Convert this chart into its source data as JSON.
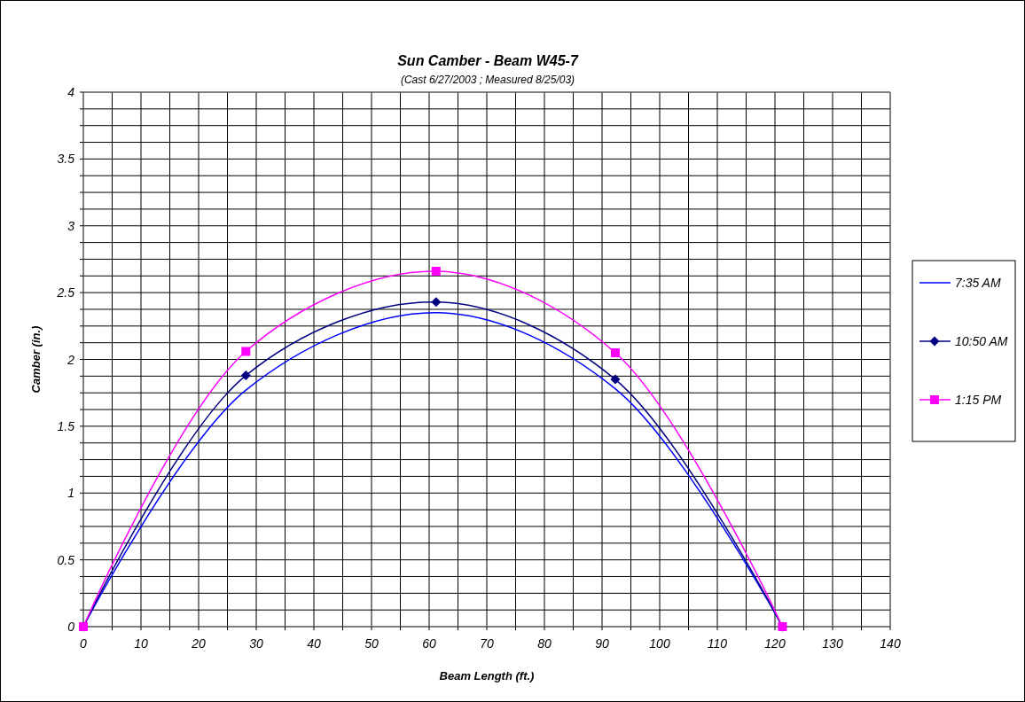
{
  "chart_data": {
    "type": "line",
    "title": "Sun Camber - Beam W45-7",
    "subtitle": "(Cast 6/27/2003 ; Measured 8/25/03)",
    "xlabel": "Beam Length (ft.)",
    "ylabel": "Camber (in.)",
    "x": [
      0,
      28.2,
      61.2,
      92.3,
      121.3
    ],
    "series": [
      {
        "name": "7:35 AM",
        "color": "#0000ff",
        "marker": "none",
        "values": [
          0,
          1.77,
          2.35,
          1.78,
          0
        ]
      },
      {
        "name": "10:50 AM",
        "color": "#000080",
        "marker": "diamond",
        "values": [
          0,
          1.88,
          2.43,
          1.85,
          0
        ]
      },
      {
        "name": "1:15 PM",
        "color": "#ff00ff",
        "marker": "square",
        "values": [
          0,
          2.06,
          2.66,
          2.05,
          0
        ]
      }
    ],
    "xlim": [
      0,
      140
    ],
    "xticks": [
      0,
      {
        "value": 5,
        "label": null
      },
      10,
      {
        "value": 15,
        "label": null
      },
      20,
      {
        "value": 25,
        "label": null
      },
      30,
      {
        "value": 35,
        "label": null
      },
      40,
      {
        "value": 45,
        "label": null
      },
      50,
      {
        "value": 55,
        "label": null
      },
      60,
      {
        "value": 65,
        "label": null
      },
      70,
      {
        "value": 75,
        "label": null
      },
      80,
      {
        "value": 85,
        "label": null
      },
      90,
      {
        "value": 95,
        "label": null
      },
      100,
      {
        "value": 105,
        "label": null
      },
      110,
      {
        "value": 115,
        "label": null
      },
      120,
      {
        "value": 125,
        "label": null
      },
      130,
      {
        "value": 135,
        "label": null
      },
      140
    ],
    "ylim": [
      0,
      4
    ],
    "yticks": [
      0,
      {
        "value": 0.125,
        "label": null
      },
      {
        "value": 0.25,
        "label": null
      },
      {
        "value": 0.375,
        "label": null
      },
      0.5,
      {
        "value": 0.625,
        "label": null
      },
      {
        "value": 0.75,
        "label": null
      },
      {
        "value": 0.875,
        "label": null
      },
      1,
      {
        "value": 1.125,
        "label": null
      },
      {
        "value": 1.25,
        "label": null
      },
      {
        "value": 1.375,
        "label": null
      },
      1.5,
      {
        "value": 1.625,
        "label": null
      },
      {
        "value": 1.75,
        "label": null
      },
      {
        "value": 1.875,
        "label": null
      },
      2,
      {
        "value": 2.125,
        "label": null
      },
      {
        "value": 2.25,
        "label": null
      },
      {
        "value": 2.375,
        "label": null
      },
      2.5,
      {
        "value": 2.625,
        "label": null
      },
      {
        "value": 2.75,
        "label": null
      },
      {
        "value": 2.875,
        "label": null
      },
      3,
      {
        "value": 3.125,
        "label": null
      },
      {
        "value": 3.25,
        "label": null
      },
      {
        "value": 3.375,
        "label": null
      },
      3.5,
      {
        "value": 3.625,
        "label": null
      },
      {
        "value": 3.75,
        "label": null
      },
      {
        "value": 3.875,
        "label": null
      },
      4
    ],
    "grid": true,
    "legend": "right",
    "line_style": "solid"
  }
}
